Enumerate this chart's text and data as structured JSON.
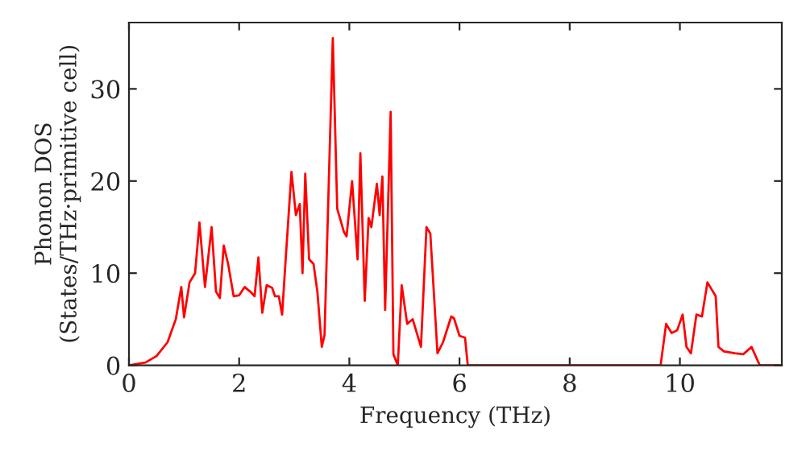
{
  "chart_data": {
    "type": "line",
    "xlabel": "Frequency (THz)",
    "ylabel": "Phonon DOS\n(States/THz·primitive cell)",
    "xlim": [
      0,
      11.85
    ],
    "ylim": [
      0,
      37.2
    ],
    "xticks": [
      0,
      2,
      4,
      6,
      8,
      10
    ],
    "yticks": [
      0,
      10,
      20,
      30
    ],
    "grid": false,
    "legend": false,
    "series": [
      {
        "color": "#ff0000",
        "x": [
          0,
          0.3,
          0.5,
          0.7,
          0.85,
          0.95,
          1.0,
          1.1,
          1.2,
          1.28,
          1.38,
          1.5,
          1.58,
          1.65,
          1.72,
          1.8,
          1.9,
          2.0,
          2.1,
          2.2,
          2.28,
          2.35,
          2.42,
          2.5,
          2.6,
          2.65,
          2.72,
          2.78,
          2.85,
          2.95,
          3.03,
          3.1,
          3.15,
          3.2,
          3.27,
          3.35,
          3.42,
          3.5,
          3.55,
          3.7,
          3.78,
          3.9,
          3.95,
          4.05,
          4.15,
          4.2,
          4.28,
          4.35,
          4.4,
          4.5,
          4.55,
          4.6,
          4.65,
          4.75,
          4.8,
          4.88,
          4.95,
          5.05,
          5.15,
          5.3,
          5.4,
          5.47,
          5.6,
          5.7,
          5.85,
          5.9,
          6.0,
          6.1,
          6.15,
          9.65,
          9.75,
          9.85,
          9.95,
          10.05,
          10.12,
          10.2,
          10.3,
          10.4,
          10.5,
          10.55,
          10.65,
          10.7,
          10.8,
          11.0,
          11.15,
          11.3,
          11.45,
          11.85
        ],
        "values": [
          0,
          0.3,
          1,
          2.5,
          5,
          8.5,
          5.2,
          9,
          10,
          15.5,
          8.5,
          15,
          8,
          7.3,
          13,
          11,
          7.5,
          7.6,
          8.5,
          8,
          7.5,
          11.7,
          5.7,
          8.7,
          8.4,
          7.5,
          7.5,
          5.5,
          12,
          21,
          16.3,
          17.5,
          10,
          20.8,
          11.5,
          11,
          8,
          2,
          3.3,
          35.5,
          17,
          14.5,
          14,
          20,
          11.5,
          23,
          7,
          16,
          15,
          19.7,
          16.3,
          20.5,
          6,
          27.5,
          1.2,
          0,
          8.7,
          4.5,
          5,
          2,
          15,
          14.3,
          1.3,
          2.5,
          5.3,
          5.1,
          3.2,
          3,
          0,
          0,
          4.5,
          3.5,
          3.8,
          5.5,
          2,
          1.3,
          5.5,
          5.3,
          9,
          8.5,
          7.5,
          2,
          1.5,
          1.3,
          1.2,
          2,
          0,
          0
        ]
      }
    ]
  }
}
